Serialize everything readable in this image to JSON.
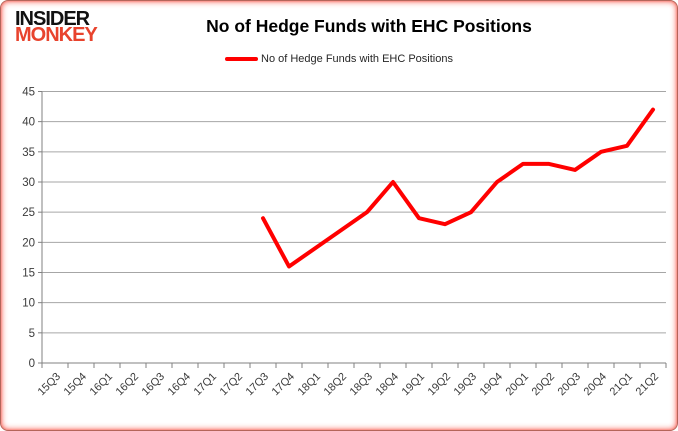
{
  "brand": {
    "line1": "INSIDER",
    "line2": "MONKEY",
    "color1": "#111111",
    "color2": "#e8432d"
  },
  "title": "No of Hedge Funds with EHC Positions",
  "legend": {
    "label": "No of Hedge Funds with EHC Positions",
    "color": "#FF0000"
  },
  "chart_data": {
    "type": "line",
    "title": "No of Hedge Funds with EHC Positions",
    "categories": [
      "15Q3",
      "15Q4",
      "16Q1",
      "16Q2",
      "16Q3",
      "16Q4",
      "17Q1",
      "17Q2",
      "17Q3",
      "17Q4",
      "18Q1",
      "18Q2",
      "18Q3",
      "18Q4",
      "19Q1",
      "19Q2",
      "19Q3",
      "19Q4",
      "20Q1",
      "20Q2",
      "20Q3",
      "20Q4",
      "21Q1",
      "21Q2"
    ],
    "series": [
      {
        "name": "No of Hedge Funds with EHC Positions",
        "color": "#FF0000",
        "values": [
          null,
          null,
          null,
          null,
          null,
          null,
          null,
          null,
          24,
          16,
          19,
          22,
          25,
          30,
          24,
          23,
          25,
          30,
          33,
          33,
          32,
          35,
          36,
          42
        ]
      }
    ],
    "xlabel": "",
    "ylabel": "",
    "ylim": [
      0,
      45
    ],
    "y_ticks": [
      0,
      5,
      10,
      15,
      20,
      25,
      30,
      35,
      40,
      45
    ],
    "grid": true,
    "legend_position": "top",
    "x_label_rotation": -45
  },
  "colors": {
    "grid": "#a6a6a6",
    "axis": "#808080",
    "tick_label": "#3b3b3b",
    "series": "#FF0000"
  }
}
